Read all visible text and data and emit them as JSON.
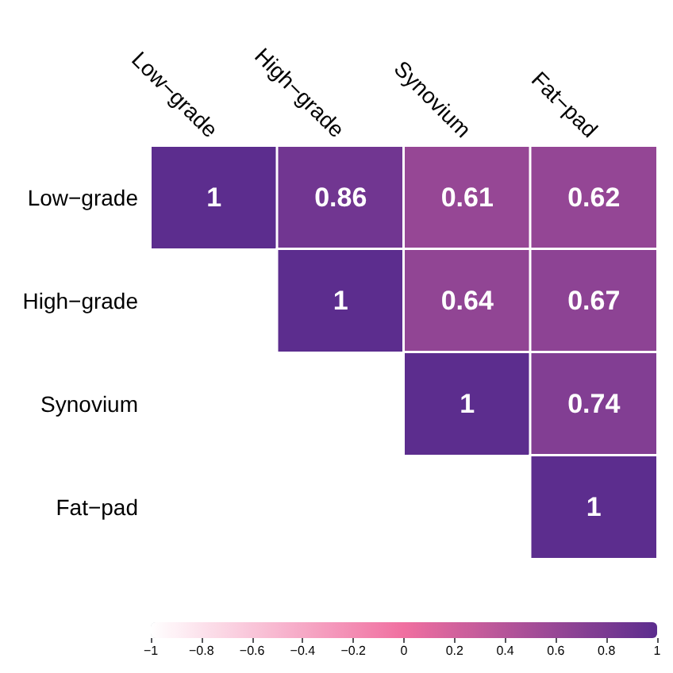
{
  "chart_data": {
    "type": "heatmap",
    "categories": [
      "Low−grade",
      "High−grade",
      "Synovium",
      "Fat−pad"
    ],
    "y_categories": [
      "Low−grade",
      "High−grade",
      "Synovium",
      "Fat−pad"
    ],
    "cells": [
      [
        1,
        0.86,
        0.61,
        0.62
      ],
      [
        null,
        1,
        0.64,
        0.67
      ],
      [
        null,
        null,
        1,
        0.74
      ],
      [
        null,
        null,
        null,
        1
      ]
    ],
    "data_labels": true,
    "clim": [
      -1,
      1
    ],
    "cticks": [
      {
        "value": -1,
        "label": "−1"
      },
      {
        "value": -0.8,
        "label": "−0.8"
      },
      {
        "value": -0.6,
        "label": "−0.6"
      },
      {
        "value": -0.4,
        "label": "−0.4"
      },
      {
        "value": -0.2,
        "label": "−0.2"
      },
      0,
      0.2,
      0.4,
      0.6,
      0.8,
      1
    ]
  }
}
